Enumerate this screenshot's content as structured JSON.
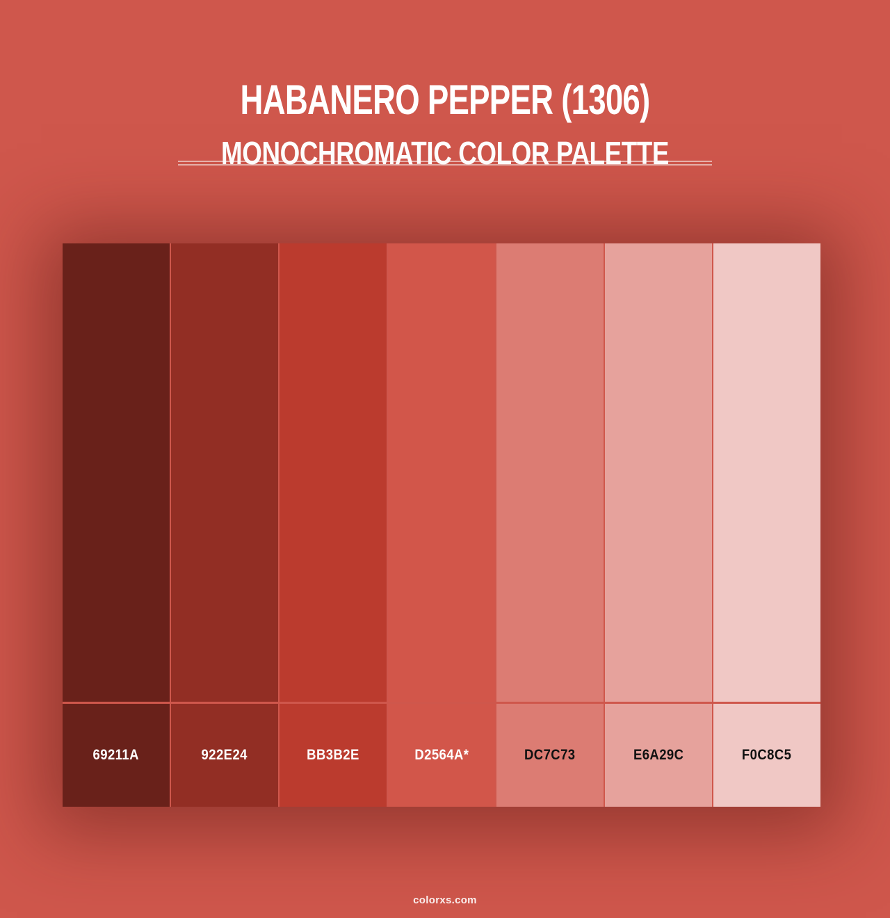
{
  "page": {
    "title": "HABANERO PEPPER (1306)",
    "subtitle": "MONOCHROMATIC COLOR PALETTE",
    "watermark": "colorxs.com",
    "colors": {
      "background": "#CF574C",
      "heading_text": "#FFFFFF",
      "divider": "rgba(255,255,255,0.55)",
      "grid_halo_shadow": "rgba(92,26,19,0.5)"
    }
  },
  "palette": {
    "type": "monochromatic",
    "swatches": [
      {
        "hex_label": "69211A",
        "color": "#69211A",
        "label_text_color": "#FFFFFF"
      },
      {
        "hex_label": "922E24",
        "color": "#922E24",
        "label_text_color": "#FFFFFF"
      },
      {
        "hex_label": "BB3B2E",
        "color": "#BB3B2E",
        "label_text_color": "#FFFFFF"
      },
      {
        "hex_label": "D2564A*",
        "color": "#D2564A",
        "label_text_color": "#FFFFFF"
      },
      {
        "hex_label": "DC7C73",
        "color": "#DC7C73",
        "label_text_color": "#111111"
      },
      {
        "hex_label": "E6A29C",
        "color": "#E6A29C",
        "label_text_color": "#111111"
      },
      {
        "hex_label": "F0C8C5",
        "color": "#F0C8C5",
        "label_text_color": "#111111"
      }
    ]
  }
}
